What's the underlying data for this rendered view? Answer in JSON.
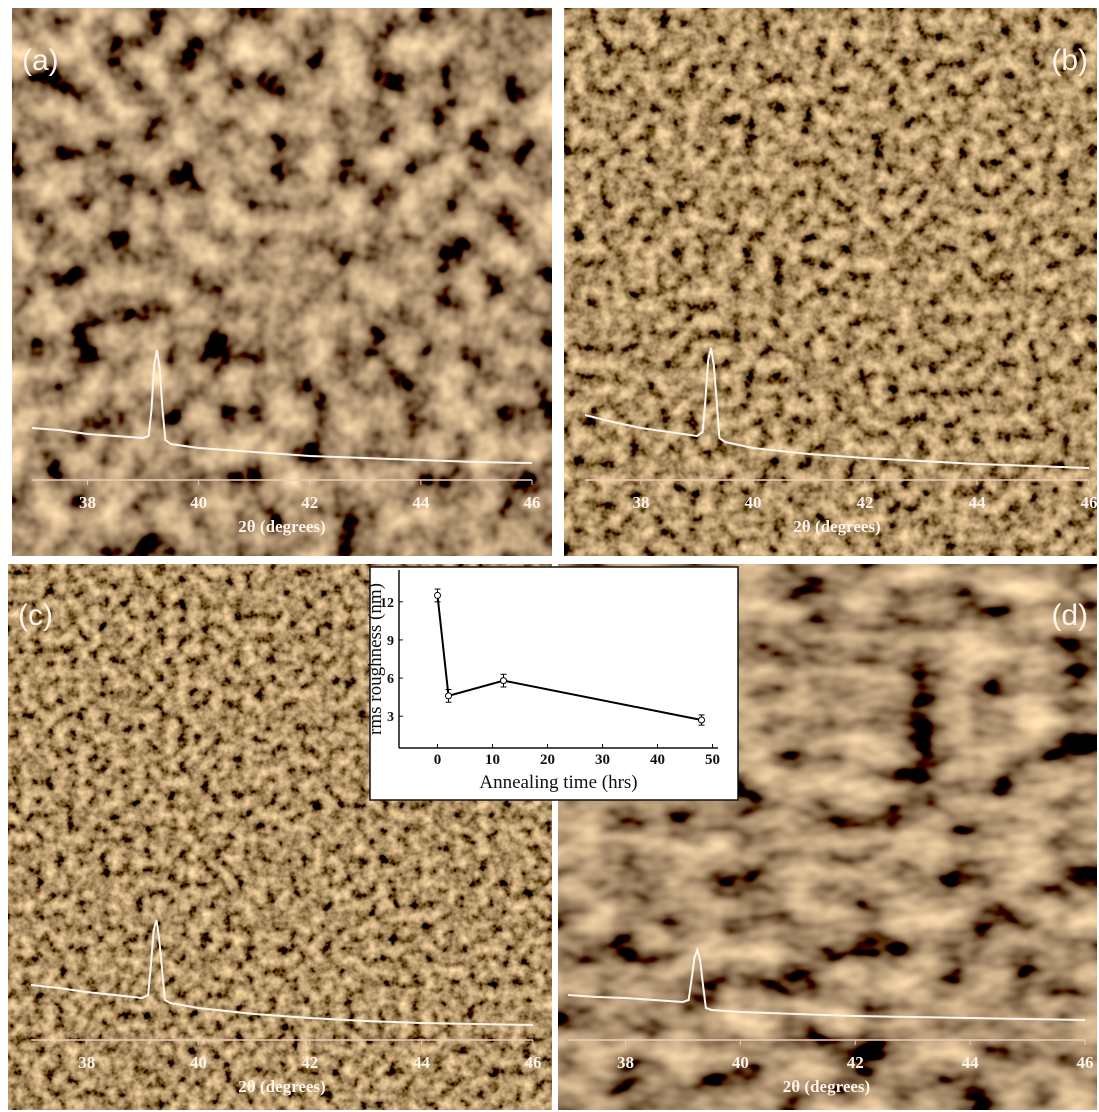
{
  "chart_data": [
    {
      "type": "line",
      "panel_label": "(a)",
      "x_label": "2θ (degrees)",
      "x": [
        37,
        37.5,
        38,
        38.5,
        39,
        39.1,
        39.15,
        39.2,
        39.25,
        39.3,
        39.35,
        39.4,
        39.5,
        40,
        41,
        42,
        43,
        44,
        45,
        46
      ],
      "series": [
        {
          "color": "#fff6ee",
          "values": [
            52,
            50,
            46,
            44,
            42,
            44,
            70,
            115,
            130,
            110,
            70,
            40,
            36,
            32,
            28,
            24,
            22,
            20,
            18,
            17
          ]
        }
      ],
      "xlim": [
        37,
        46
      ],
      "ylim": [
        0,
        160
      ],
      "xticks": [
        38,
        40,
        42,
        44,
        46
      ]
    },
    {
      "type": "line",
      "panel_label": "(b)",
      "x_label": "2θ (degrees)",
      "x": [
        37,
        37.5,
        38,
        38.5,
        39,
        39.1,
        39.15,
        39.2,
        39.25,
        39.3,
        39.35,
        39.4,
        39.5,
        40,
        41,
        42,
        43,
        44,
        45,
        46
      ],
      "series": [
        {
          "color": "#fff6ee",
          "values": [
            65,
            58,
            52,
            48,
            44,
            48,
            80,
            120,
            132,
            115,
            80,
            42,
            38,
            32,
            26,
            22,
            19,
            16,
            14,
            12
          ]
        }
      ],
      "xlim": [
        37,
        46
      ],
      "ylim": [
        0,
        160
      ],
      "xticks": [
        38,
        40,
        42,
        44,
        46
      ]
    },
    {
      "type": "line",
      "panel_label": "(c)",
      "x_label": "2θ (degrees)",
      "x": [
        37,
        37.5,
        38,
        38.5,
        39,
        39.1,
        39.15,
        39.2,
        39.25,
        39.3,
        39.35,
        39.4,
        39.5,
        40,
        41,
        42,
        43,
        44,
        45,
        46
      ],
      "series": [
        {
          "color": "#fff6ee",
          "values": [
            55,
            52,
            48,
            45,
            42,
            45,
            75,
            110,
            120,
            100,
            70,
            40,
            37,
            32,
            26,
            22,
            19,
            17,
            16,
            15
          ]
        }
      ],
      "xlim": [
        37,
        46
      ],
      "ylim": [
        0,
        160
      ],
      "xticks": [
        38,
        40,
        42,
        44,
        46
      ]
    },
    {
      "type": "line",
      "panel_label": "(d)",
      "x_label": "2θ (degrees)",
      "x": [
        37,
        37.5,
        38,
        38.5,
        39,
        39.1,
        39.15,
        39.2,
        39.25,
        39.3,
        39.35,
        39.4,
        39.5,
        40,
        41,
        42,
        43,
        44,
        45,
        46
      ],
      "series": [
        {
          "color": "#fff6ee",
          "values": [
            45,
            43,
            42,
            40,
            38,
            40,
            60,
            82,
            90,
            80,
            55,
            32,
            30,
            28,
            26,
            24,
            23,
            22,
            21,
            20
          ]
        }
      ],
      "xlim": [
        37,
        46
      ],
      "ylim": [
        0,
        160
      ],
      "xticks": [
        38,
        40,
        42,
        44,
        46
      ]
    },
    {
      "type": "line",
      "x_label": "Annealing time (hrs)",
      "y_label": "rms roughness (nm)",
      "x": [
        0,
        2,
        12,
        48
      ],
      "series": [
        {
          "color": "#000000",
          "values": [
            12.5,
            4.6,
            5.8,
            2.7
          ],
          "errors": [
            0.5,
            0.5,
            0.5,
            0.4
          ]
        }
      ],
      "xlim": [
        -7,
        51
      ],
      "ylim": [
        0.5,
        14.5
      ],
      "xticks": [
        0,
        10,
        20,
        30,
        40,
        50
      ],
      "yticks": [
        3,
        6,
        9,
        12
      ]
    }
  ]
}
